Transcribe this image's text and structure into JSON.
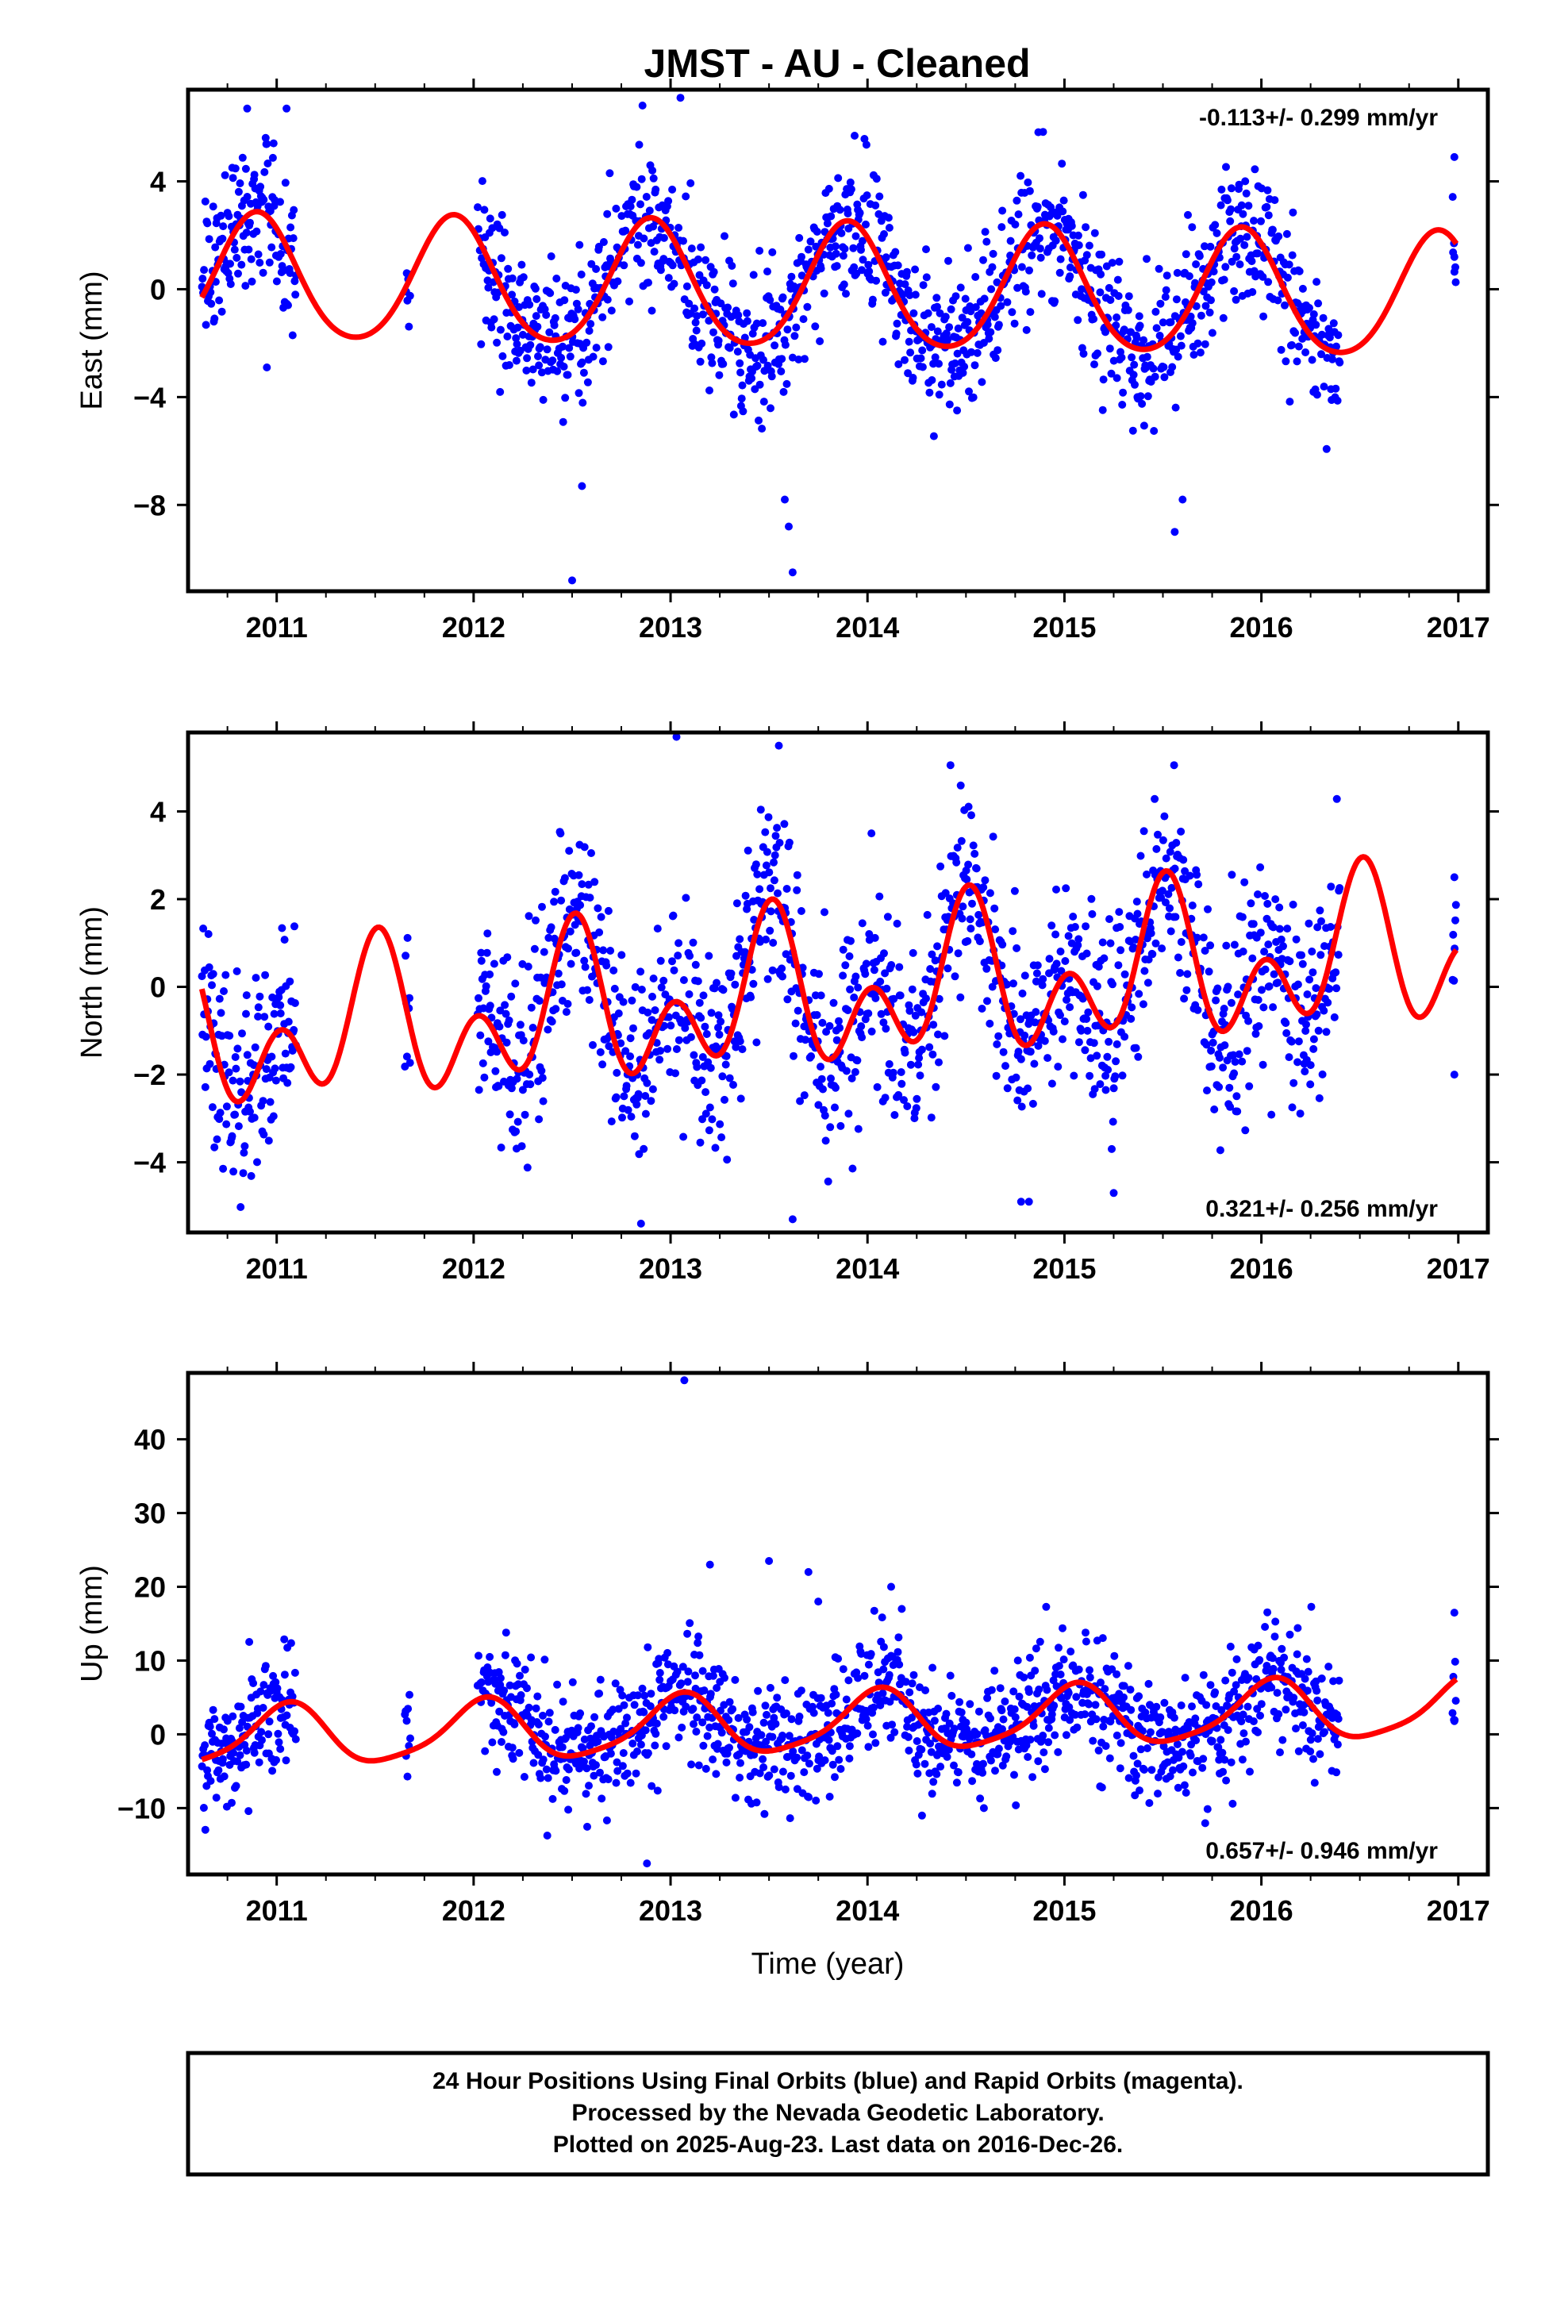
{
  "title": "JMST  - AU - Cleaned",
  "colors": {
    "points": "#0000ff",
    "fit": "#ff0000",
    "frame": "#000000"
  },
  "chart_data": [
    {
      "type": "scatter",
      "panel": "east",
      "ylabel": "East (mm)",
      "xlabel": "",
      "xlim": [
        2010.55,
        2017.15
      ],
      "ylim": [
        -11.2,
        7.4
      ],
      "xticks": [
        "2011",
        "2012",
        "2013",
        "2014",
        "2015",
        "2016",
        "2017"
      ],
      "yticks": [
        "4",
        "0",
        "−4",
        "−8"
      ],
      "rate": "-0.113+/- 0.299 mm/yr",
      "rate_position": "top-right",
      "fit": {
        "offset": 0.0,
        "trend": -0.113,
        "annual_amp": 2.3,
        "annual_peak": 0.9,
        "semiannual_amp": 0.25,
        "semiannual_peak": 0.4
      },
      "data_segments": [
        [
          2010.62,
          2011.1
        ],
        [
          2011.65,
          2011.68
        ],
        [
          2012.02,
          2016.4
        ],
        [
          2016.97,
          2016.99
        ]
      ],
      "scatter_sigma": 1.3,
      "outliers": [
        {
          "x": 2013.05,
          "y": 7.1
        },
        {
          "x": 2012.5,
          "y": -10.8
        },
        {
          "x": 2013.62,
          "y": -10.5
        },
        {
          "x": 2013.58,
          "y": -7.8
        },
        {
          "x": 2013.6,
          "y": -8.8
        },
        {
          "x": 2015.56,
          "y": -9.0
        },
        {
          "x": 2012.55,
          "y": -7.3
        },
        {
          "x": 2016.98,
          "y": 4.9
        },
        {
          "x": 2016.98,
          "y": 1.2
        },
        {
          "x": 2010.85,
          "y": 6.7
        },
        {
          "x": 2011.05,
          "y": 6.7
        },
        {
          "x": 2010.95,
          "y": -2.9
        },
        {
          "x": 2015.6,
          "y": -7.8
        }
      ]
    },
    {
      "type": "scatter",
      "panel": "north",
      "ylabel": "North (mm)",
      "xlabel": "",
      "xlim": [
        2010.55,
        2017.15
      ],
      "ylim": [
        -5.6,
        5.8
      ],
      "xticks": [
        "2011",
        "2012",
        "2013",
        "2014",
        "2015",
        "2016",
        "2017"
      ],
      "yticks": [
        "4",
        "2",
        "0",
        "−2",
        "−4"
      ],
      "rate": "0.321+/- 0.256 mm/yr",
      "rate_position": "bottom-right",
      "fit": {
        "offset": -0.2,
        "trend": 0.321,
        "annual_amp": 1.1,
        "annual_peak": 0.5,
        "semiannual_amp": 1.2,
        "semiannual_peak": 0.02
      },
      "data_segments": [
        [
          2010.62,
          2011.1
        ],
        [
          2011.65,
          2011.68
        ],
        [
          2012.02,
          2016.4
        ],
        [
          2016.97,
          2016.99
        ]
      ],
      "scatter_sigma": 1.1,
      "outliers": [
        {
          "x": 2013.03,
          "y": 5.7
        },
        {
          "x": 2013.55,
          "y": 5.5
        },
        {
          "x": 2012.85,
          "y": -5.4
        },
        {
          "x": 2013.62,
          "y": -5.3
        },
        {
          "x": 2014.78,
          "y": -4.9
        },
        {
          "x": 2014.82,
          "y": -4.9
        },
        {
          "x": 2016.98,
          "y": 2.5
        },
        {
          "x": 2016.98,
          "y": -2.0
        },
        {
          "x": 2015.25,
          "y": -4.7
        },
        {
          "x": 2014.02,
          "y": 3.5
        }
      ]
    },
    {
      "type": "scatter",
      "panel": "up",
      "ylabel": "Up (mm)",
      "xlabel": "Time (year)",
      "xlim": [
        2010.55,
        2017.15
      ],
      "ylim": [
        -19,
        49
      ],
      "xticks": [
        "2011",
        "2012",
        "2013",
        "2014",
        "2015",
        "2016",
        "2017"
      ],
      "yticks": [
        "40",
        "30",
        "20",
        "10",
        "0",
        "−10"
      ],
      "rate": "0.657+/- 0.946 mm/yr",
      "rate_position": "bottom-right",
      "fit": {
        "offset": 1.5,
        "trend": 0.657,
        "annual_amp": 4.0,
        "annual_peak": 0.05,
        "semiannual_amp": 0.8,
        "semiannual_peak": 0.1
      },
      "data_segments": [
        [
          2010.62,
          2011.1
        ],
        [
          2011.65,
          2011.68
        ],
        [
          2012.02,
          2016.4
        ],
        [
          2016.97,
          2016.99
        ]
      ],
      "scatter_sigma": 4.2,
      "outliers": [
        {
          "x": 2013.07,
          "y": 48
        },
        {
          "x": 2013.2,
          "y": 23
        },
        {
          "x": 2013.5,
          "y": 23.5
        },
        {
          "x": 2013.7,
          "y": 22
        },
        {
          "x": 2012.88,
          "y": -17.5
        },
        {
          "x": 2016.98,
          "y": 16.5
        },
        {
          "x": 2016.98,
          "y": 1.8
        },
        {
          "x": 2013.75,
          "y": 18
        },
        {
          "x": 2014.12,
          "y": 20
        }
      ]
    }
  ],
  "footer": {
    "line1": "24 Hour Positions Using Final Orbits (blue) and Rapid Orbits (magenta).",
    "line2": "Processed by the Nevada Geodetic Laboratory.",
    "line3": "Plotted on 2025-Aug-23. Last data on 2016-Dec-26."
  }
}
